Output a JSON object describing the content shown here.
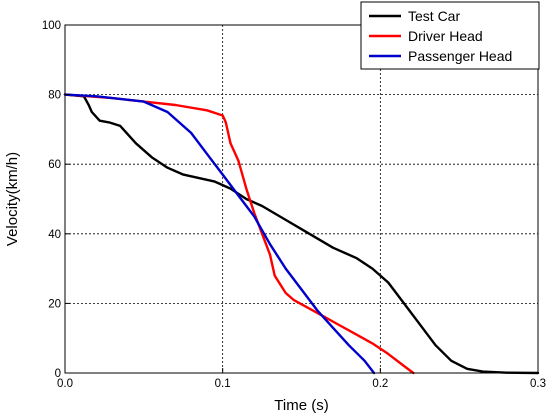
{
  "chart_data": {
    "type": "line",
    "title": "",
    "xlabel": "Time (s)",
    "ylabel": "Velocity(km/h)",
    "xlim": [
      0,
      0.3
    ],
    "ylim": [
      0,
      100
    ],
    "x_ticks": [
      0.0,
      0.1,
      0.2,
      0.3
    ],
    "x_tick_labels": [
      "0.0",
      "0.1",
      "0.2",
      "0.3"
    ],
    "y_ticks": [
      0,
      20,
      40,
      60,
      80,
      100
    ],
    "y_tick_labels": [
      "0",
      "20",
      "40",
      "60",
      "80",
      "100"
    ],
    "grid": "dotted",
    "legend_position": "top-right",
    "series": [
      {
        "name": "Test Car",
        "color": "#000000",
        "points": [
          [
            0,
            80
          ],
          [
            0.012,
            79.5
          ],
          [
            0.015,
            77
          ],
          [
            0.017,
            75
          ],
          [
            0.022,
            72.5
          ],
          [
            0.028,
            72
          ],
          [
            0.035,
            71
          ],
          [
            0.045,
            66
          ],
          [
            0.055,
            62
          ],
          [
            0.065,
            59
          ],
          [
            0.075,
            57
          ],
          [
            0.085,
            56
          ],
          [
            0.095,
            55
          ],
          [
            0.105,
            53
          ],
          [
            0.115,
            50
          ],
          [
            0.125,
            48
          ],
          [
            0.14,
            44
          ],
          [
            0.155,
            40
          ],
          [
            0.17,
            36
          ],
          [
            0.185,
            33
          ],
          [
            0.195,
            30
          ],
          [
            0.205,
            26
          ],
          [
            0.215,
            20
          ],
          [
            0.225,
            14
          ],
          [
            0.235,
            8
          ],
          [
            0.245,
            3.5
          ],
          [
            0.255,
            1.2
          ],
          [
            0.265,
            0.4
          ],
          [
            0.28,
            0.1
          ],
          [
            0.3,
            0
          ]
        ]
      },
      {
        "name": "Driver Head",
        "color": "#ff0000",
        "points": [
          [
            0,
            80
          ],
          [
            0.03,
            79
          ],
          [
            0.05,
            78
          ],
          [
            0.07,
            77
          ],
          [
            0.09,
            75.5
          ],
          [
            0.1,
            74
          ],
          [
            0.102,
            72
          ],
          [
            0.105,
            66
          ],
          [
            0.11,
            61
          ],
          [
            0.115,
            53
          ],
          [
            0.12,
            46
          ],
          [
            0.125,
            40
          ],
          [
            0.13,
            34
          ],
          [
            0.133,
            28
          ],
          [
            0.14,
            23
          ],
          [
            0.145,
            21
          ],
          [
            0.155,
            18.5
          ],
          [
            0.165,
            16
          ],
          [
            0.175,
            13.5
          ],
          [
            0.185,
            11
          ],
          [
            0.195,
            8.5
          ],
          [
            0.205,
            5.5
          ],
          [
            0.215,
            2
          ],
          [
            0.221,
            0
          ]
        ]
      },
      {
        "name": "Passenger Head",
        "color": "#0000cc",
        "points": [
          [
            0,
            80
          ],
          [
            0.02,
            79.5
          ],
          [
            0.05,
            78
          ],
          [
            0.065,
            75
          ],
          [
            0.08,
            69
          ],
          [
            0.09,
            63
          ],
          [
            0.1,
            57
          ],
          [
            0.11,
            51
          ],
          [
            0.12,
            45
          ],
          [
            0.125,
            41
          ],
          [
            0.13,
            37
          ],
          [
            0.14,
            30
          ],
          [
            0.15,
            24
          ],
          [
            0.16,
            18
          ],
          [
            0.17,
            13
          ],
          [
            0.18,
            8
          ],
          [
            0.19,
            3.5
          ],
          [
            0.196,
            0
          ]
        ]
      }
    ]
  }
}
